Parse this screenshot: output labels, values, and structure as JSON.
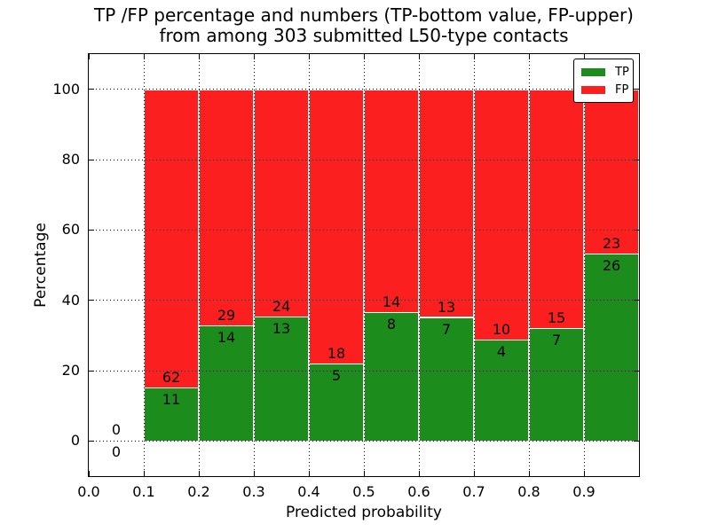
{
  "figure": {
    "title_line1": "TP /FP percentage and numbers (TP-bottom value, FP-upper)",
    "title_line2": "from among 303 submitted L50-type contacts",
    "xlabel": "Predicted probability",
    "ylabel": "Percentage"
  },
  "legend": {
    "items": [
      {
        "label": "TP",
        "color": "#1c8c1c"
      },
      {
        "label": "FP",
        "color": "#fb1f1f"
      }
    ]
  },
  "chart_data": {
    "type": "bar",
    "stacked": true,
    "title": "TP /FP percentage and numbers (TP-bottom value, FP-upper) from among 303 submitted L50-type contacts",
    "xlabel": "Predicted probability",
    "ylabel": "Percentage",
    "total_contacts": 303,
    "bin_edges": [
      0.0,
      0.1,
      0.2,
      0.3,
      0.4,
      0.5,
      0.6,
      0.7,
      0.8,
      0.9,
      1.0
    ],
    "series": [
      {
        "name": "TP",
        "color": "#1c8c1c",
        "counts": [
          0,
          11,
          14,
          13,
          5,
          8,
          7,
          4,
          7,
          26
        ]
      },
      {
        "name": "FP",
        "color": "#fb1f1f",
        "counts": [
          0,
          62,
          29,
          24,
          18,
          14,
          13,
          10,
          15,
          23
        ]
      }
    ],
    "bar_height_mode": "percent_of_bin_total_stacked_to_100",
    "tp_percent_by_bin": [
      0,
      15.1,
      32.6,
      35.1,
      21.7,
      36.4,
      35.0,
      28.6,
      31.8,
      53.1
    ],
    "xticks": [
      "0.0",
      "0.1",
      "0.2",
      "0.3",
      "0.4",
      "0.5",
      "0.6",
      "0.7",
      "0.8",
      "0.9"
    ],
    "yticks": [
      0,
      20,
      40,
      60,
      80,
      100
    ],
    "xlim": [
      0.0,
      1.0
    ],
    "ylim": [
      -10,
      110
    ],
    "grid": "dotted",
    "legend_position": "upper right"
  }
}
